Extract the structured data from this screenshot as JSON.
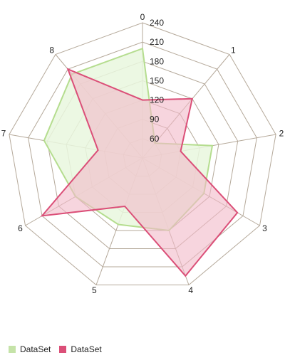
{
  "chart_data": {
    "type": "radar",
    "axes": [
      "0",
      "1",
      "2",
      "3",
      "4",
      "5",
      "6",
      "7",
      "8"
    ],
    "scale": {
      "min": 60,
      "max": 240,
      "step": 30
    },
    "tick_labels": [
      "60",
      "90",
      "120",
      "150",
      "180",
      "210",
      "240"
    ],
    "grid": true,
    "legend_position": "bottom-left",
    "series": [
      {
        "name": "DataSet",
        "color": "#b5dd8f",
        "fill": "#e9f7de",
        "values": [
          200,
          60,
          140,
          140,
          150,
          140,
          150,
          185,
          200
        ]
      },
      {
        "name": "DataSet",
        "color": "#db4f78",
        "fill": "#f2b9c8",
        "values": [
          120,
          150,
          90,
          200,
          225,
          110,
          210,
          100,
          210
        ]
      }
    ]
  },
  "colors": {
    "grid": "#b5a99a"
  }
}
